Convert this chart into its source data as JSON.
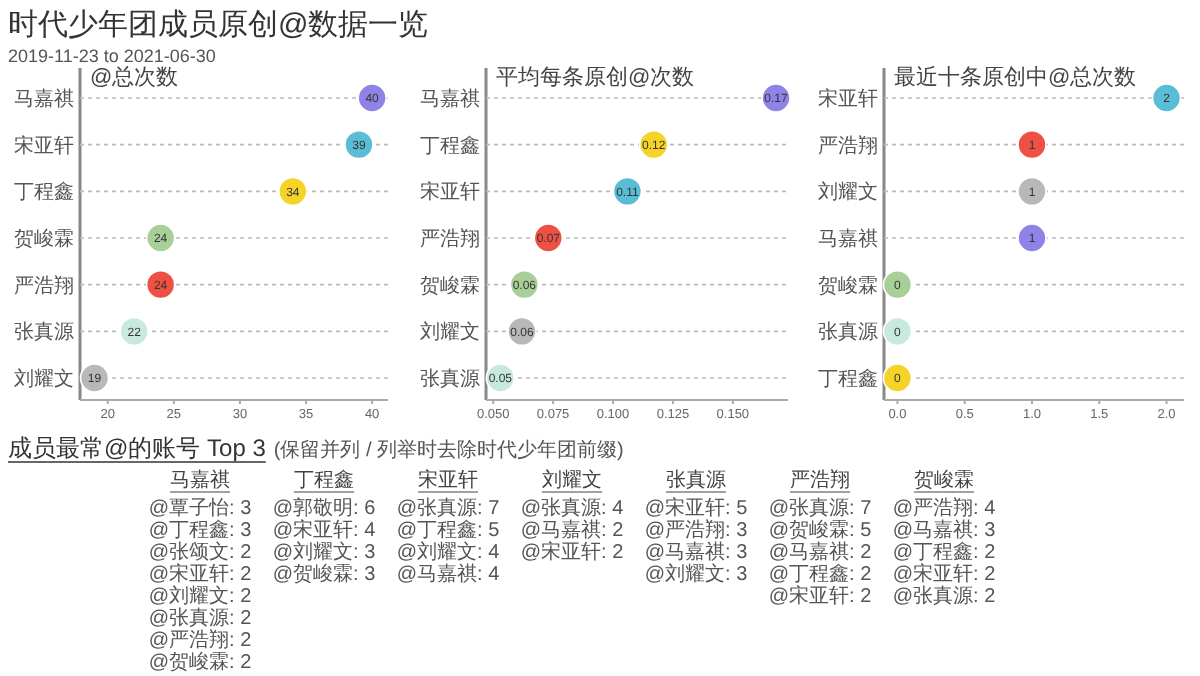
{
  "chart_data": [
    {
      "type": "other",
      "title": "时代少年团成员原创@数据一览",
      "subtitle": "2019-11-23 to 2021-06-30"
    },
    {
      "type": "scatter",
      "orientation": "horizontal",
      "title": "@总次数",
      "grid": "y",
      "data_labels": true,
      "categories": [
        "马嘉祺",
        "宋亚轩",
        "丁程鑫",
        "贺峻霖",
        "严浩翔",
        "张真源",
        "刘耀文"
      ],
      "values": [
        40,
        39,
        34,
        24,
        24,
        22,
        19
      ],
      "colors": [
        "#8f83e8",
        "#5bbcd6",
        "#f5d327",
        "#a8cf98",
        "#ee5143",
        "#c8eadc",
        "#b8b8b8"
      ],
      "xlim": [
        17.9,
        41.2
      ],
      "xticks": [
        20,
        25,
        30,
        35,
        40
      ]
    },
    {
      "type": "scatter",
      "orientation": "horizontal",
      "title": "平均每条原创@次数",
      "grid": "y",
      "categories": [
        "马嘉祺",
        "丁程鑫",
        "宋亚轩",
        "严浩翔",
        "贺峻霖",
        "刘耀文",
        "张真源"
      ],
      "values": [
        0.168,
        0.117,
        0.106,
        0.073,
        0.063,
        0.062,
        0.053
      ],
      "value_labels": [
        "0.17",
        "0.12",
        "0.11",
        "0.07",
        "0.06",
        "0.06",
        "0.05"
      ],
      "colors": [
        "#8f83e8",
        "#f5d327",
        "#5bbcd6",
        "#ee5143",
        "#a8cf98",
        "#b8b8b8",
        "#c8eadc"
      ],
      "xlim": [
        0.047,
        0.173
      ],
      "xticks": [
        {
          "value": 0.05,
          "label": "0.050"
        },
        {
          "value": 0.075,
          "label": "0.075"
        },
        {
          "value": 0.1,
          "label": "0.100"
        },
        {
          "value": 0.125,
          "label": "0.125"
        },
        {
          "value": 0.15,
          "label": "0.150"
        }
      ]
    },
    {
      "type": "scatter",
      "orientation": "horizontal",
      "title": "最近十条原创中@总次数",
      "grid": "y",
      "data_labels": true,
      "categories": [
        "宋亚轩",
        "严浩翔",
        "刘耀文",
        "马嘉祺",
        "贺峻霖",
        "张真源",
        "丁程鑫"
      ],
      "values": [
        2,
        1,
        1,
        1,
        0,
        0,
        0
      ],
      "colors": [
        "#5bbcd6",
        "#ee5143",
        "#b8b8b8",
        "#8f83e8",
        "#a8cf98",
        "#c8eadc",
        "#f5d327"
      ],
      "xlim": [
        -0.1,
        2.13
      ],
      "xticks": [
        {
          "value": 0,
          "label": "0.0"
        },
        {
          "value": 0.5,
          "label": "0.5"
        },
        {
          "value": 1,
          "label": "1.0"
        },
        {
          "value": 1.5,
          "label": "1.5"
        },
        {
          "value": 2,
          "label": "2.0"
        }
      ]
    },
    {
      "type": "other",
      "title": "成员最常@的账号 Top 3",
      "subtitle": "(保留并列 / 列举时去除时代少年团前缀)",
      "categories": [
        "马嘉祺",
        "丁程鑫",
        "宋亚轩",
        "刘耀文",
        "张真源",
        "严浩翔",
        "贺峻霖"
      ],
      "annotations": [
        {
          "text": "@覃子怡: 3",
          "x": "马嘉祺"
        },
        {
          "text": "@丁程鑫: 3",
          "x": "马嘉祺"
        },
        {
          "text": "@张颂文: 2",
          "x": "马嘉祺"
        },
        {
          "text": "@宋亚轩: 2",
          "x": "马嘉祺"
        },
        {
          "text": "@刘耀文: 2",
          "x": "马嘉祺"
        },
        {
          "text": "@张真源: 2",
          "x": "马嘉祺"
        },
        {
          "text": "@严浩翔: 2",
          "x": "马嘉祺"
        },
        {
          "text": "@贺峻霖: 2",
          "x": "马嘉祺"
        },
        {
          "text": "@郭敬明: 6",
          "x": "丁程鑫"
        },
        {
          "text": "@宋亚轩: 4",
          "x": "丁程鑫"
        },
        {
          "text": "@刘耀文: 3",
          "x": "丁程鑫"
        },
        {
          "text": "@贺峻霖: 3",
          "x": "丁程鑫"
        },
        {
          "text": "@张真源: 7",
          "x": "宋亚轩"
        },
        {
          "text": "@丁程鑫: 5",
          "x": "宋亚轩"
        },
        {
          "text": "@刘耀文: 4",
          "x": "宋亚轩"
        },
        {
          "text": "@马嘉祺: 4",
          "x": "宋亚轩"
        },
        {
          "text": "@张真源: 4",
          "x": "刘耀文"
        },
        {
          "text": "@马嘉祺: 2",
          "x": "刘耀文"
        },
        {
          "text": "@宋亚轩: 2",
          "x": "刘耀文"
        },
        {
          "text": "@宋亚轩: 5",
          "x": "张真源"
        },
        {
          "text": "@严浩翔: 3",
          "x": "张真源"
        },
        {
          "text": "@马嘉祺: 3",
          "x": "张真源"
        },
        {
          "text": "@刘耀文: 3",
          "x": "张真源"
        },
        {
          "text": "@张真源: 7",
          "x": "严浩翔"
        },
        {
          "text": "@贺峻霖: 5",
          "x": "严浩翔"
        },
        {
          "text": "@马嘉祺: 2",
          "x": "严浩翔"
        },
        {
          "text": "@丁程鑫: 2",
          "x": "严浩翔"
        },
        {
          "text": "@宋亚轩: 2",
          "x": "严浩翔"
        },
        {
          "text": "@严浩翔: 4",
          "x": "贺峻霖"
        },
        {
          "text": "@马嘉祺: 3",
          "x": "贺峻霖"
        },
        {
          "text": "@丁程鑫: 2",
          "x": "贺峻霖"
        },
        {
          "text": "@宋亚轩: 2",
          "x": "贺峻霖"
        },
        {
          "text": "@张真源: 2",
          "x": "贺峻霖"
        }
      ]
    }
  ]
}
